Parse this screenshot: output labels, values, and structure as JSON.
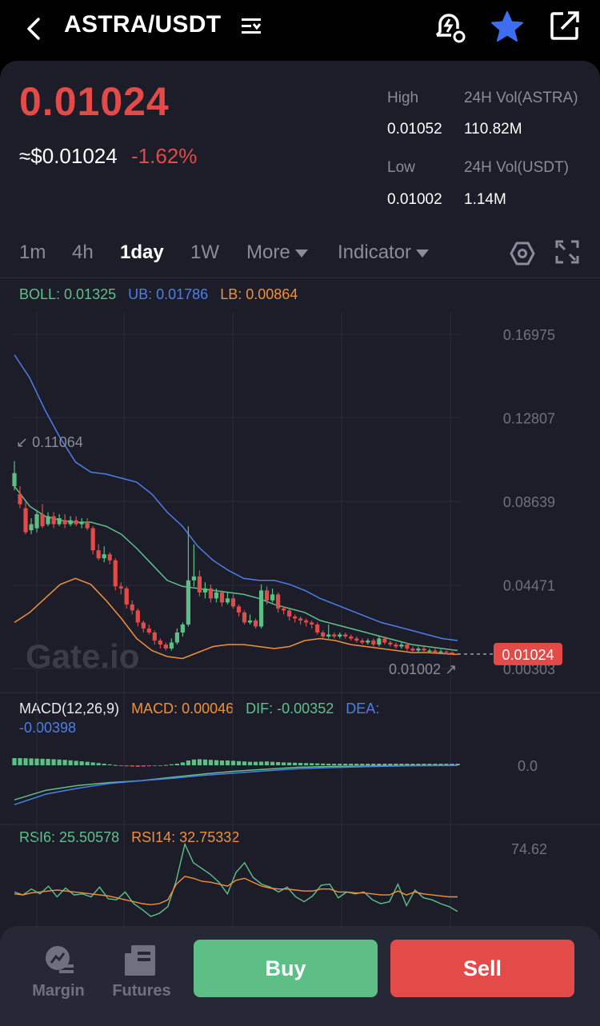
{
  "header": {
    "pair": "ASTRA/USDT"
  },
  "ticker": {
    "last_price": "0.01024",
    "usd_price": "≈$0.01024",
    "change": "-1.62%",
    "high_label": "High",
    "high": "0.01052",
    "low_label": "Low",
    "low": "0.01002",
    "vol_base_label": "24H Vol(ASTRA)",
    "vol_base": "110.82M",
    "vol_quote_label": "24H Vol(USDT)",
    "vol_quote": "1.14M"
  },
  "timeframes": [
    {
      "label": "1m",
      "active": false
    },
    {
      "label": "4h",
      "active": false
    },
    {
      "label": "1day",
      "active": true
    },
    {
      "label": "1W",
      "active": false
    }
  ],
  "more_label": "More",
  "indicator_label": "Indicator",
  "boll": {
    "label": "BOLL: 0.01325",
    "ub": "UB: 0.01786",
    "lb": "LB: 0.00864"
  },
  "macd": {
    "label": "MACD(12,26,9)",
    "macd": "MACD: 0.00046",
    "dif": "DIF: -0.00352",
    "dea_label": "DEA:",
    "dea_value": "-0.00398"
  },
  "rsi": {
    "rsi6": "RSI6: 25.50578",
    "rsi14": "RSI14: 32.75332"
  },
  "watermark": "Gate.io",
  "colors": {
    "up": "#5dbf86",
    "down": "#e24b47",
    "boll_mid": "#5fc08a",
    "boll_upper": "#4c7fe6",
    "boll_lower": "#f0913a"
  },
  "chart_data": {
    "type": "candlestick",
    "y_ticks": [
      "0.16975",
      "0.12807",
      "0.08639",
      "0.04471",
      "0.00303"
    ],
    "ylim": [
      0.00303,
      0.16975
    ],
    "max_marker": "0.11064",
    "min_marker": "0.01002",
    "last_price_tag": "0.01024",
    "candles": [
      {
        "o": 0.094,
        "c": 0.1005,
        "h": 0.1065,
        "l": 0.092
      },
      {
        "o": 0.09,
        "c": 0.085,
        "h": 0.094,
        "l": 0.083
      },
      {
        "o": 0.083,
        "c": 0.071,
        "h": 0.086,
        "l": 0.07
      },
      {
        "o": 0.072,
        "c": 0.075,
        "h": 0.078,
        "l": 0.07
      },
      {
        "o": 0.073,
        "c": 0.08,
        "h": 0.082,
        "l": 0.071
      },
      {
        "o": 0.08,
        "c": 0.074,
        "h": 0.085,
        "l": 0.073
      },
      {
        "o": 0.075,
        "c": 0.079,
        "h": 0.081,
        "l": 0.074
      },
      {
        "o": 0.079,
        "c": 0.075,
        "h": 0.081,
        "l": 0.073
      },
      {
        "o": 0.075,
        "c": 0.078,
        "h": 0.08,
        "l": 0.074
      },
      {
        "o": 0.077,
        "c": 0.075,
        "h": 0.08,
        "l": 0.073
      },
      {
        "o": 0.075,
        "c": 0.077,
        "h": 0.079,
        "l": 0.074
      },
      {
        "o": 0.077,
        "c": 0.075,
        "h": 0.079,
        "l": 0.074
      },
      {
        "o": 0.075,
        "c": 0.076,
        "h": 0.078,
        "l": 0.073
      },
      {
        "o": 0.076,
        "c": 0.073,
        "h": 0.078,
        "l": 0.072
      },
      {
        "o": 0.073,
        "c": 0.062,
        "h": 0.074,
        "l": 0.06
      },
      {
        "o": 0.062,
        "c": 0.058,
        "h": 0.065,
        "l": 0.057
      },
      {
        "o": 0.058,
        "c": 0.06,
        "h": 0.064,
        "l": 0.056
      },
      {
        "o": 0.06,
        "c": 0.057,
        "h": 0.061,
        "l": 0.055
      },
      {
        "o": 0.057,
        "c": 0.044,
        "h": 0.058,
        "l": 0.042
      },
      {
        "o": 0.044,
        "c": 0.043,
        "h": 0.046,
        "l": 0.04
      },
      {
        "o": 0.043,
        "c": 0.035,
        "h": 0.044,
        "l": 0.033
      },
      {
        "o": 0.035,
        "c": 0.032,
        "h": 0.037,
        "l": 0.03
      },
      {
        "o": 0.032,
        "c": 0.026,
        "h": 0.033,
        "l": 0.024
      },
      {
        "o": 0.026,
        "c": 0.023,
        "h": 0.027,
        "l": 0.021
      },
      {
        "o": 0.023,
        "c": 0.021,
        "h": 0.025,
        "l": 0.02
      },
      {
        "o": 0.021,
        "c": 0.017,
        "h": 0.022,
        "l": 0.015
      },
      {
        "o": 0.017,
        "c": 0.015,
        "h": 0.018,
        "l": 0.013
      },
      {
        "o": 0.015,
        "c": 0.013,
        "h": 0.016,
        "l": 0.012
      },
      {
        "o": 0.013,
        "c": 0.016,
        "h": 0.018,
        "l": 0.012
      },
      {
        "o": 0.016,
        "c": 0.021,
        "h": 0.023,
        "l": 0.015
      },
      {
        "o": 0.021,
        "c": 0.025,
        "h": 0.026,
        "l": 0.019
      },
      {
        "o": 0.025,
        "c": 0.047,
        "h": 0.074,
        "l": 0.024
      },
      {
        "o": 0.047,
        "c": 0.049,
        "h": 0.065,
        "l": 0.044
      },
      {
        "o": 0.049,
        "c": 0.041,
        "h": 0.052,
        "l": 0.039
      },
      {
        "o": 0.041,
        "c": 0.043,
        "h": 0.046,
        "l": 0.038
      },
      {
        "o": 0.043,
        "c": 0.038,
        "h": 0.045,
        "l": 0.036
      },
      {
        "o": 0.038,
        "c": 0.041,
        "h": 0.043,
        "l": 0.036
      },
      {
        "o": 0.041,
        "c": 0.036,
        "h": 0.042,
        "l": 0.034
      },
      {
        "o": 0.036,
        "c": 0.038,
        "h": 0.041,
        "l": 0.035
      },
      {
        "o": 0.038,
        "c": 0.034,
        "h": 0.04,
        "l": 0.033
      },
      {
        "o": 0.034,
        "c": 0.031,
        "h": 0.035,
        "l": 0.029
      },
      {
        "o": 0.031,
        "c": 0.026,
        "h": 0.032,
        "l": 0.025
      },
      {
        "o": 0.026,
        "c": 0.027,
        "h": 0.03,
        "l": 0.025
      },
      {
        "o": 0.027,
        "c": 0.024,
        "h": 0.028,
        "l": 0.023
      },
      {
        "o": 0.024,
        "c": 0.042,
        "h": 0.045,
        "l": 0.023
      },
      {
        "o": 0.042,
        "c": 0.037,
        "h": 0.044,
        "l": 0.035
      },
      {
        "o": 0.037,
        "c": 0.04,
        "h": 0.043,
        "l": 0.036
      },
      {
        "o": 0.04,
        "c": 0.033,
        "h": 0.041,
        "l": 0.031
      },
      {
        "o": 0.033,
        "c": 0.032,
        "h": 0.034,
        "l": 0.03
      },
      {
        "o": 0.032,
        "c": 0.029,
        "h": 0.033,
        "l": 0.027
      },
      {
        "o": 0.029,
        "c": 0.028,
        "h": 0.03,
        "l": 0.026
      },
      {
        "o": 0.028,
        "c": 0.027,
        "h": 0.029,
        "l": 0.025
      },
      {
        "o": 0.027,
        "c": 0.026,
        "h": 0.028,
        "l": 0.024
      },
      {
        "o": 0.026,
        "c": 0.025,
        "h": 0.027,
        "l": 0.023
      },
      {
        "o": 0.025,
        "c": 0.021,
        "h": 0.026,
        "l": 0.02
      },
      {
        "o": 0.021,
        "c": 0.019,
        "h": 0.022,
        "l": 0.018
      },
      {
        "o": 0.019,
        "c": 0.02,
        "h": 0.025,
        "l": 0.018
      },
      {
        "o": 0.02,
        "c": 0.019,
        "h": 0.021,
        "l": 0.018
      },
      {
        "o": 0.019,
        "c": 0.02,
        "h": 0.021,
        "l": 0.018
      },
      {
        "o": 0.02,
        "c": 0.019,
        "h": 0.021,
        "l": 0.018
      },
      {
        "o": 0.019,
        "c": 0.018,
        "h": 0.02,
        "l": 0.017
      },
      {
        "o": 0.018,
        "c": 0.017,
        "h": 0.019,
        "l": 0.016
      },
      {
        "o": 0.017,
        "c": 0.016,
        "h": 0.018,
        "l": 0.015
      },
      {
        "o": 0.016,
        "c": 0.017,
        "h": 0.018,
        "l": 0.015
      },
      {
        "o": 0.017,
        "c": 0.015,
        "h": 0.018,
        "l": 0.014
      },
      {
        "o": 0.015,
        "c": 0.018,
        "h": 0.019,
        "l": 0.014
      },
      {
        "o": 0.018,
        "c": 0.016,
        "h": 0.019,
        "l": 0.015
      },
      {
        "o": 0.016,
        "c": 0.015,
        "h": 0.017,
        "l": 0.014
      },
      {
        "o": 0.015,
        "c": 0.014,
        "h": 0.016,
        "l": 0.013
      },
      {
        "o": 0.014,
        "c": 0.015,
        "h": 0.016,
        "l": 0.013
      },
      {
        "o": 0.015,
        "c": 0.013,
        "h": 0.016,
        "l": 0.012
      },
      {
        "o": 0.013,
        "c": 0.012,
        "h": 0.014,
        "l": 0.011
      },
      {
        "o": 0.012,
        "c": 0.013,
        "h": 0.014,
        "l": 0.011
      },
      {
        "o": 0.013,
        "c": 0.012,
        "h": 0.014,
        "l": 0.011
      },
      {
        "o": 0.012,
        "c": 0.012,
        "h": 0.013,
        "l": 0.011
      },
      {
        "o": 0.012,
        "c": 0.011,
        "h": 0.013,
        "l": 0.0105
      },
      {
        "o": 0.011,
        "c": 0.0115,
        "h": 0.0125,
        "l": 0.0105
      },
      {
        "o": 0.0115,
        "c": 0.011,
        "h": 0.012,
        "l": 0.0102
      },
      {
        "o": 0.011,
        "c": 0.0105,
        "h": 0.0115,
        "l": 0.01002
      },
      {
        "o": 0.0105,
        "c": 0.01024,
        "h": 0.01052,
        "l": 0.01002
      }
    ],
    "boll_upper": [
      0.1595,
      0.148,
      0.132,
      0.118,
      0.106,
      0.101,
      0.1,
      0.098,
      0.096,
      0.09,
      0.081,
      0.074,
      0.064,
      0.057,
      0.052,
      0.048,
      0.047,
      0.047,
      0.045,
      0.042,
      0.038,
      0.035,
      0.032,
      0.029,
      0.026,
      0.024,
      0.022,
      0.02,
      0.018,
      0.017
    ],
    "boll_mid": [
      0.094,
      0.084,
      0.079,
      0.077,
      0.076,
      0.076,
      0.074,
      0.07,
      0.063,
      0.055,
      0.047,
      0.044,
      0.043,
      0.042,
      0.041,
      0.04,
      0.038,
      0.035,
      0.033,
      0.031,
      0.027,
      0.025,
      0.023,
      0.021,
      0.019,
      0.017,
      0.015,
      0.014,
      0.013,
      0.012
    ],
    "boll_lower": [
      0.026,
      0.031,
      0.038,
      0.045,
      0.048,
      0.045,
      0.037,
      0.028,
      0.018,
      0.012,
      0.009,
      0.008,
      0.011,
      0.014,
      0.015,
      0.015,
      0.014,
      0.013,
      0.014,
      0.017,
      0.018,
      0.017,
      0.015,
      0.014,
      0.013,
      0.012,
      0.011,
      0.011,
      0.0105,
      0.01
    ],
    "macd_ylabel": "0.0",
    "macd_hist": [
      0.45,
      0.45,
      0.44,
      0.43,
      0.42,
      0.41,
      0.4,
      0.38,
      0.36,
      0.34,
      0.31,
      0.28,
      0.25,
      0.22,
      0.18,
      0.14,
      0.1,
      0.06,
      0.02,
      -0.03,
      -0.06,
      -0.08,
      -0.09,
      -0.08,
      -0.06,
      -0.04,
      -0.02,
      0.02,
      0.06,
      0.1,
      0.18,
      0.3,
      0.36,
      0.38,
      0.36,
      0.34,
      0.32,
      0.3,
      0.3,
      0.28,
      0.26,
      0.24,
      0.22,
      0.22,
      0.23,
      0.24,
      0.22,
      0.2,
      0.18,
      0.17,
      0.16,
      0.15,
      0.14,
      0.13,
      0.12,
      0.11,
      0.1,
      0.1,
      0.1,
      0.1,
      0.1,
      0.1,
      0.1,
      0.1,
      0.1,
      0.1,
      0.1,
      0.1,
      0.1,
      0.1,
      0.1,
      0.1,
      0.1,
      0.1,
      0.1,
      0.1,
      0.1,
      0.1,
      0.1,
      0.1
    ],
    "macd_dif": [
      -1.8,
      -1.3,
      -1.05,
      -0.9,
      -0.8,
      -0.62,
      -0.45,
      -0.3,
      -0.2,
      -0.1,
      -0.06,
      -0.04,
      -0.02,
      -0.01,
      0.0
    ],
    "macd_dea": [
      -2.05,
      -1.5,
      -1.2,
      -0.95,
      -0.8,
      -0.68,
      -0.52,
      -0.4,
      -0.28,
      -0.18,
      -0.12,
      -0.08,
      -0.04,
      -0.02,
      -0.01
    ],
    "rsi_ylabel": "74.62",
    "rsi6": [
      30,
      27,
      33,
      28,
      36,
      25,
      34,
      27,
      28,
      25,
      35,
      23,
      22,
      30,
      18,
      12,
      5,
      8,
      15,
      42,
      79,
      60,
      54,
      48,
      40,
      28,
      50,
      60,
      45,
      38,
      35,
      30,
      35,
      25,
      20,
      26,
      37,
      38,
      24,
      30,
      28,
      30,
      22,
      18,
      20,
      38,
      16,
      32,
      24,
      22,
      18,
      15,
      10
    ],
    "rsi14": [
      28,
      27,
      29,
      30,
      31,
      32,
      31,
      30,
      29,
      28,
      27,
      26,
      24,
      22,
      20,
      18,
      17,
      18,
      22,
      38,
      46,
      44,
      41,
      40,
      38,
      36,
      42,
      44,
      40,
      36,
      34,
      33,
      33,
      32,
      31,
      31,
      33,
      33,
      30,
      30,
      29,
      29,
      28,
      27,
      27,
      31,
      27,
      30,
      28,
      27,
      26,
      25,
      25
    ]
  }
}
